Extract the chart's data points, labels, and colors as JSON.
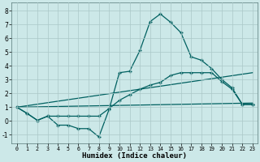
{
  "xlabel": "Humidex (Indice chaleur)",
  "bg_color": "#cce8e8",
  "grid_color": "#aac8c8",
  "line_color": "#006060",
  "xlim": [
    -0.5,
    23.5
  ],
  "ylim": [
    -1.6,
    8.6
  ],
  "xticks": [
    0,
    1,
    2,
    3,
    4,
    5,
    6,
    7,
    8,
    9,
    10,
    11,
    12,
    13,
    14,
    15,
    16,
    17,
    18,
    19,
    20,
    21,
    22,
    23
  ],
  "yticks": [
    -1,
    0,
    1,
    2,
    3,
    4,
    5,
    6,
    7,
    8
  ],
  "line1_x": [
    0,
    1,
    2,
    3,
    4,
    5,
    6,
    7,
    8,
    9,
    10,
    11,
    12,
    13,
    14,
    15,
    16,
    17,
    18,
    19,
    20,
    21,
    22,
    23
  ],
  "line1_y": [
    1.0,
    0.55,
    0.05,
    0.35,
    -0.3,
    -0.3,
    -0.55,
    -0.55,
    -1.15,
    0.85,
    3.5,
    3.6,
    5.1,
    7.2,
    7.75,
    7.15,
    6.4,
    4.65,
    4.4,
    3.8,
    3.0,
    2.4,
    1.2,
    1.2
  ],
  "line2_x": [
    0,
    1,
    2,
    3,
    4,
    5,
    6,
    7,
    8,
    9,
    10,
    11,
    12,
    13,
    14,
    15,
    16,
    17,
    18,
    19,
    20,
    21,
    22,
    23
  ],
  "line2_y": [
    1.0,
    0.55,
    0.05,
    0.35,
    0.35,
    0.35,
    0.35,
    0.35,
    0.35,
    0.9,
    1.5,
    1.9,
    2.3,
    2.6,
    2.8,
    3.3,
    3.5,
    3.5,
    3.5,
    3.5,
    2.85,
    2.3,
    1.2,
    1.2
  ],
  "line3_x": [
    0,
    23
  ],
  "line3_y": [
    1.0,
    1.3
  ],
  "line4_x": [
    0,
    23
  ],
  "line4_y": [
    1.0,
    3.5
  ]
}
